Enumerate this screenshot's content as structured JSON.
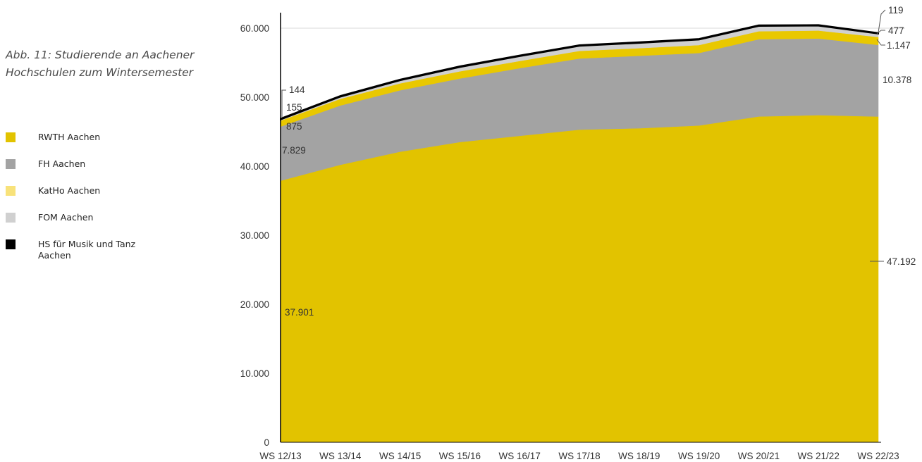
{
  "caption": {
    "line1": "Abb. 11: Studierende an Aachener",
    "line2": "Hochschulen zum Wintersemester"
  },
  "legend": [
    {
      "label": "RWTH Aachen",
      "color": "#e2c300"
    },
    {
      "label": "FH Aachen",
      "color": "#a3a3a3"
    },
    {
      "label": "KatHo Aachen",
      "color": "#f8e27a"
    },
    {
      "label": "FOM Aachen",
      "color": "#d0d0d0"
    },
    {
      "label": "HS für Musik und Tanz Aachen",
      "color": "#000000"
    }
  ],
  "chart_data": {
    "type": "area",
    "stacked": true,
    "categories": [
      "WS 12/13",
      "WS 13/14",
      "WS 14/15",
      "WS 15/16",
      "WS 16/17",
      "WS 17/18",
      "WS 18/19",
      "WS 19/20",
      "WS 20/21",
      "WS 21/22",
      "WS 22/23"
    ],
    "series": [
      {
        "name": "RWTH Aachen",
        "color": "#e2c300",
        "values": [
          37901,
          40200,
          42100,
          43500,
          44400,
          45300,
          45500,
          45900,
          47200,
          47400,
          47192
        ]
      },
      {
        "name": "FH Aachen",
        "color": "#a3a3a3",
        "values": [
          7829,
          8600,
          8900,
          9200,
          9800,
          10300,
          10500,
          10500,
          11200,
          11100,
          10378
        ]
      },
      {
        "name": "KatHo Aachen",
        "color": "#e9c800",
        "values": [
          875,
          950,
          1000,
          1050,
          1050,
          1100,
          1100,
          1150,
          1150,
          1150,
          1147
        ]
      },
      {
        "name": "FOM Aachen",
        "color": "#d0d0d0",
        "values": [
          155,
          300,
          430,
          600,
          680,
          720,
          750,
          780,
          760,
          700,
          477
        ]
      },
      {
        "name": "HS für Musik und Tanz Aachen",
        "color": "#000000",
        "values": [
          144,
          144,
          140,
          135,
          130,
          130,
          128,
          125,
          122,
          120,
          119
        ]
      }
    ],
    "yticks": [
      0,
      10000,
      20000,
      30000,
      40000,
      50000,
      60000
    ],
    "ytick_labels": [
      "0",
      "10.000",
      "20.000",
      "30.000",
      "40.000",
      "50.000",
      "60.000"
    ],
    "ylim": [
      0,
      62000
    ],
    "grid_y": [
      60000
    ],
    "start_labels": [
      "37.901",
      "7.829",
      "875",
      "155",
      "144"
    ],
    "end_labels": [
      "47.192",
      "10.378",
      "1.147",
      "477",
      "119"
    ]
  }
}
